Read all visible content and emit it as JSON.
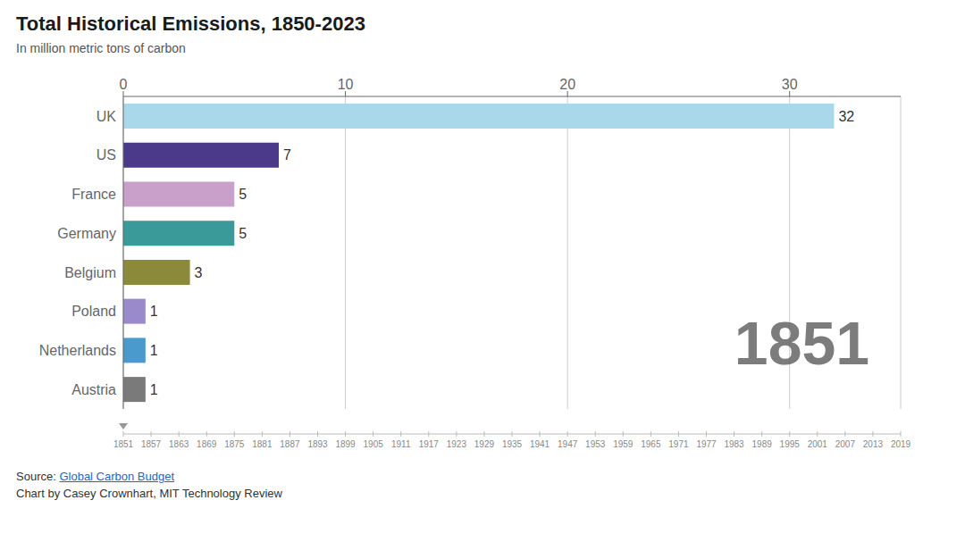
{
  "chart_data": {
    "type": "bar",
    "orientation": "horizontal",
    "title": "Total Historical Emissions, 1850-2023",
    "subtitle": "In million metric tons of carbon",
    "categories": [
      "UK",
      "US",
      "France",
      "Germany",
      "Belgium",
      "Poland",
      "Netherlands",
      "Austria"
    ],
    "values": [
      32,
      7,
      5,
      5,
      3,
      1,
      1,
      1
    ],
    "colors": [
      "#a8d8ea",
      "#4b3a8a",
      "#c9a0c9",
      "#3a9a9a",
      "#8a8a3a",
      "#9a8acc",
      "#4a9acd",
      "#7a7a7a"
    ],
    "xlim": [
      0,
      35
    ],
    "xticks": [
      0,
      10,
      20,
      30
    ],
    "grid": true,
    "data_labels": true,
    "annotations": [
      "1851"
    ],
    "timeline": [
      "1851",
      "1857",
      "1863",
      "1869",
      "1875",
      "1881",
      "1887",
      "1893",
      "1899",
      "1905",
      "1911",
      "1917",
      "1923",
      "1929",
      "1935",
      "1941",
      "1947",
      "1953",
      "1959",
      "1965",
      "1971",
      "1977",
      "1983",
      "1989",
      "1995",
      "2001",
      "2007",
      "2013",
      "2019"
    ],
    "source": [
      "Source: ",
      "Global Carbon Budget"
    ],
    "credit": "Chart by Casey Crownhart, MIT Technology Review"
  }
}
